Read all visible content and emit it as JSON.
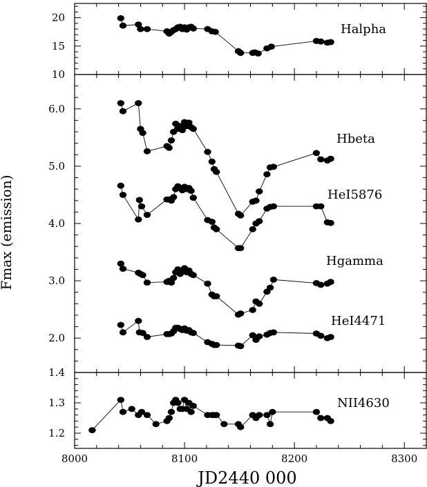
{
  "chart_data": {
    "type": "scatter",
    "xlabel": "JD2440 000",
    "ylabel": "Fmax (emission)",
    "xlim": [
      8000,
      8320
    ],
    "xticks": [
      "8000",
      "8100",
      "8200",
      "8300"
    ],
    "panels": [
      {
        "name": "top",
        "ylim": [
          10,
          22.5
        ],
        "yticks": [
          "10",
          "15",
          "20"
        ],
        "series": [
          {
            "name": "Halpha",
            "x": [
              8042,
              8044,
              8058,
              8060,
              8066,
              8084,
              8086,
              8088,
              8090,
              8092,
              8094,
              8096,
              8098,
              8100,
              8102,
              8104,
              8106,
              8108,
              8121,
              8125,
              8128,
              8149,
              8151,
              8162,
              8164,
              8167,
              8175,
              8179,
              8220,
              8224,
              8230,
              8233
            ],
            "y": [
              19.9,
              18.6,
              18.8,
              18.0,
              18.0,
              17.6,
              17.2,
              17.5,
              17.8,
              18.0,
              18.3,
              18.4,
              18.0,
              18.3,
              17.9,
              18.3,
              18.4,
              18.1,
              18.0,
              17.6,
              17.5,
              14.1,
              13.8,
              13.8,
              13.9,
              13.7,
              14.6,
              14.9,
              15.9,
              15.8,
              15.6,
              15.7
            ]
          }
        ]
      },
      {
        "name": "middle",
        "ylim": [
          1.4,
          6.6
        ],
        "yticks": [
          "2.0",
          "3.0",
          "4.0",
          "5.0",
          "6.0"
        ],
        "series": [
          {
            "name": "Hbeta",
            "x": [
              8042,
              8044,
              8058,
              8060,
              8062,
              8066,
              8084,
              8086,
              8088,
              8090,
              8092,
              8094,
              8096,
              8098,
              8100,
              8102,
              8104,
              8106,
              8108,
              8121,
              8125,
              8127,
              8129,
              8149,
              8151,
              8162,
              8165,
              8168,
              8175,
              8178,
              8181,
              8220,
              8224,
              8230,
              8233
            ],
            "y": [
              6.1,
              5.96,
              6.1,
              5.65,
              5.58,
              5.26,
              5.35,
              5.32,
              5.45,
              5.6,
              5.74,
              5.65,
              5.7,
              5.63,
              5.77,
              5.7,
              5.76,
              5.68,
              5.65,
              5.25,
              5.08,
              4.95,
              4.9,
              4.17,
              4.14,
              4.38,
              4.4,
              4.56,
              4.86,
              4.98,
              4.99,
              5.23,
              5.12,
              5.1,
              5.13
            ]
          },
          {
            "name": "HeI5876",
            "x": [
              8042,
              8044,
              8058,
              8059,
              8061,
              8066,
              8084,
              8086,
              8088,
              8090,
              8092,
              8094,
              8096,
              8098,
              8100,
              8102,
              8104,
              8106,
              8108,
              8121,
              8125,
              8127,
              8129,
              8149,
              8151,
              8162,
              8165,
              8168,
              8175,
              8178,
              8181,
              8220,
              8224,
              8230,
              8233
            ],
            "y": [
              4.66,
              4.5,
              4.07,
              4.41,
              4.3,
              4.15,
              4.42,
              4.42,
              4.4,
              4.46,
              4.6,
              4.65,
              4.62,
              4.58,
              4.64,
              4.6,
              4.62,
              4.57,
              4.45,
              4.06,
              4.03,
              3.93,
              3.9,
              3.57,
              3.57,
              3.9,
              4.0,
              4.04,
              4.26,
              4.29,
              4.3,
              4.3,
              4.3,
              4.02,
              4.01
            ]
          },
          {
            "name": "Hgamma",
            "x": [
              8042,
              8044,
              8058,
              8060,
              8062,
              8066,
              8084,
              8086,
              8088,
              8090,
              8092,
              8094,
              8096,
              8098,
              8100,
              8102,
              8104,
              8106,
              8108,
              8121,
              8125,
              8127,
              8129,
              8149,
              8151,
              8162,
              8165,
              8168,
              8175,
              8178,
              8181,
              8220,
              8224,
              8230,
              8233
            ],
            "y": [
              3.3,
              3.21,
              3.14,
              3.12,
              3.1,
              2.97,
              2.98,
              3.0,
              2.97,
              3.05,
              3.15,
              3.2,
              3.12,
              3.17,
              3.22,
              3.15,
              3.18,
              3.12,
              3.1,
              2.95,
              2.76,
              2.73,
              2.73,
              2.41,
              2.43,
              2.49,
              2.64,
              2.6,
              2.81,
              2.88,
              3.02,
              2.96,
              2.93,
              2.95,
              2.98
            ]
          },
          {
            "name": "HeI4471",
            "x": [
              8042,
              8044,
              8058,
              8059,
              8062,
              8066,
              8084,
              8086,
              8088,
              8090,
              8092,
              8094,
              8096,
              8098,
              8100,
              8102,
              8104,
              8106,
              8108,
              8121,
              8125,
              8127,
              8129,
              8149,
              8151,
              8162,
              8165,
              8168,
              8175,
              8178,
              8181,
              8220,
              8224,
              8230,
              8233
            ],
            "y": [
              2.23,
              2.1,
              2.3,
              2.1,
              2.09,
              2.02,
              2.07,
              2.07,
              2.08,
              2.12,
              2.18,
              2.18,
              2.16,
              2.14,
              2.17,
              2.13,
              2.14,
              2.1,
              2.09,
              1.93,
              1.9,
              1.88,
              1.88,
              1.87,
              1.86,
              2.05,
              1.97,
              2.03,
              2.06,
              2.09,
              2.1,
              2.08,
              2.04,
              2.0,
              2.02
            ]
          }
        ]
      },
      {
        "name": "bottom",
        "ylim": [
          1.15,
          1.4
        ],
        "yticks": [
          "1.2",
          "1.3",
          "1.4"
        ],
        "series": [
          {
            "name": "NII4630",
            "x": [
              8016,
              8042,
              8044,
              8052,
              8058,
              8061,
              8066,
              8074,
              8084,
              8086,
              8088,
              8090,
              8092,
              8094,
              8096,
              8098,
              8100,
              8102,
              8104,
              8106,
              8108,
              8121,
              8125,
              8127,
              8129,
              8136,
              8149,
              8151,
              8162,
              8165,
              8168,
              8175,
              8178,
              8180,
              8220,
              8224,
              8230,
              8233
            ],
            "y": [
              1.21,
              1.31,
              1.27,
              1.28,
              1.26,
              1.27,
              1.26,
              1.23,
              1.24,
              1.25,
              1.27,
              1.3,
              1.31,
              1.3,
              1.28,
              1.28,
              1.31,
              1.28,
              1.3,
              1.27,
              1.29,
              1.26,
              1.26,
              1.26,
              1.26,
              1.23,
              1.23,
              1.22,
              1.26,
              1.25,
              1.26,
              1.26,
              1.23,
              1.27,
              1.27,
              1.25,
              1.25,
              1.24
            ]
          }
        ]
      }
    ]
  }
}
